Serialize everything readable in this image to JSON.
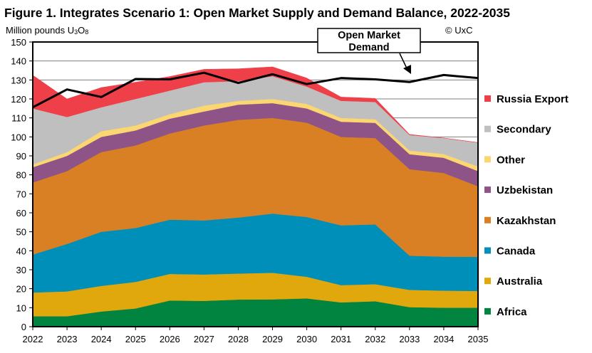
{
  "chart_data": {
    "type": "area",
    "stacked": true,
    "title": "Figure 1. Integrates Scenario 1: Open Market Supply and Demand Balance, 2022-2035",
    "ylabel_prefix": "Million pounds U",
    "ylabel_sub1": "3",
    "ylabel_mid": "O",
    "ylabel_sub2": "8",
    "copyright": "© UxC",
    "xlabel": "",
    "ylim": [
      0,
      150
    ],
    "yticks": [
      0,
      10,
      20,
      30,
      40,
      50,
      60,
      70,
      80,
      90,
      100,
      110,
      120,
      130,
      140,
      150
    ],
    "grid": true,
    "legend_position": "right",
    "x": [
      "2022",
      "2023",
      "2024",
      "2025",
      "2026",
      "2027",
      "2028",
      "2029",
      "2030",
      "2031",
      "2032",
      "2033",
      "2034",
      "2035"
    ],
    "series": [
      {
        "name": "Africa",
        "color": "#00843f",
        "values": [
          5.5,
          5.5,
          8,
          9.6,
          13.8,
          13.6,
          14.3,
          14.4,
          14.9,
          12.8,
          13.4,
          10.3,
          10,
          10
        ]
      },
      {
        "name": "Australia",
        "color": "#e0a80c",
        "values": [
          12.5,
          13.1,
          13.5,
          14,
          14,
          13.9,
          13.7,
          14,
          11.4,
          9.1,
          9,
          9.1,
          9,
          8.8
        ]
      },
      {
        "name": "Canada",
        "color": "#008fb8",
        "values": [
          20,
          25,
          28.5,
          28.4,
          28.6,
          28.5,
          29.5,
          31.2,
          31.5,
          31.5,
          31.5,
          18,
          17.9,
          18
        ]
      },
      {
        "name": "Kazakhstan",
        "color": "#d98024",
        "values": [
          38,
          38.4,
          42,
          43.5,
          45.4,
          50,
          51.5,
          50.4,
          49.7,
          46.6,
          45.5,
          45.6,
          44.1,
          37.2
        ]
      },
      {
        "name": "Uzbekistan",
        "color": "#8e5488",
        "values": [
          8,
          8,
          8,
          7.9,
          7.8,
          7.4,
          8,
          7.8,
          7.5,
          8,
          8,
          7.9,
          8,
          8
        ]
      },
      {
        "name": "Other",
        "color": "#fcd670",
        "values": [
          1.5,
          2,
          3,
          2.6,
          2.4,
          3.1,
          2,
          2.2,
          2.4,
          2,
          1.9,
          1.9,
          2,
          2.4
        ]
      },
      {
        "name": "Secondary",
        "color": "#bfbfbf",
        "values": [
          29.5,
          18.5,
          12.6,
          14,
          12.4,
          12.3,
          10.4,
          12,
          9.1,
          9,
          9.1,
          8.2,
          8.4,
          12.6
        ]
      },
      {
        "name": "Russia Export",
        "color": "#ef404a",
        "values": [
          17.5,
          9.5,
          10.4,
          8.8,
          7.4,
          6.8,
          6.5,
          4.9,
          4.5,
          2,
          1.9,
          0.3,
          0,
          0
        ]
      }
    ],
    "line_series": {
      "name": "Open Market Demand",
      "color": "#000000",
      "values": [
        115.6,
        125,
        121,
        130.5,
        130.3,
        133.8,
        128.4,
        133,
        127.8,
        131,
        130.3,
        128.9,
        132.6,
        131
      ]
    },
    "annotation": {
      "line1": "Open Market",
      "line2": "Demand"
    }
  }
}
